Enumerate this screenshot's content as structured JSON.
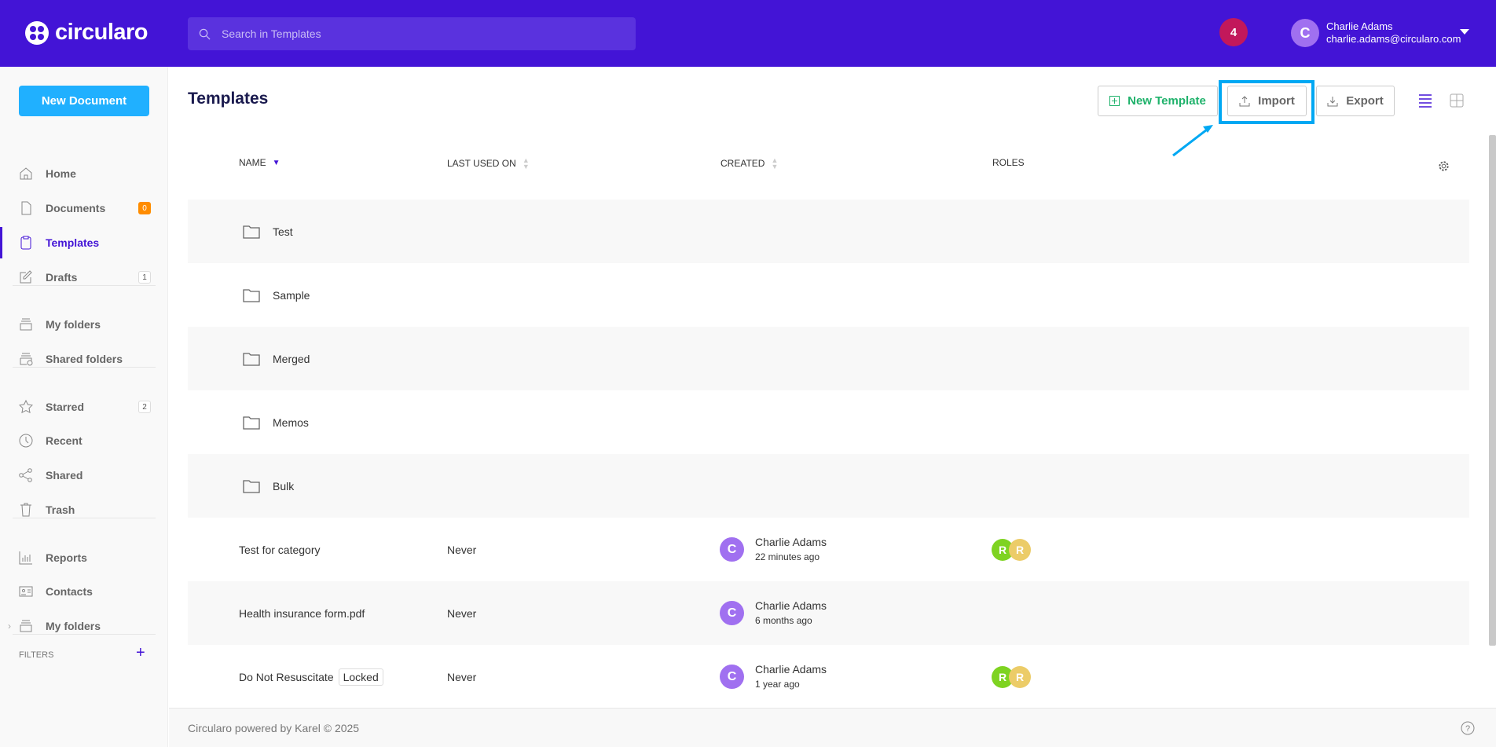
{
  "header": {
    "brand": "circularo",
    "search_placeholder": "Search in Templates",
    "notifications": "4",
    "user": {
      "initial": "C",
      "name": "Charlie Adams",
      "email": "charlie.adams@circularo.com"
    },
    "color": "#4314d6"
  },
  "sidebar": {
    "new_document": "New Document",
    "items": [
      {
        "label": "Home",
        "icon": "home-icon"
      },
      {
        "label": "Documents",
        "icon": "document-icon",
        "count": "0"
      },
      {
        "label": "Templates",
        "icon": "clipboard-icon",
        "active": true
      },
      {
        "label": "Drafts",
        "icon": "edit-icon",
        "count": "1"
      },
      {
        "label": "My folders",
        "icon": "folders-icon"
      },
      {
        "label": "Shared folders",
        "icon": "shared-folders-icon"
      },
      {
        "label": "Starred",
        "icon": "star-icon",
        "count": "2"
      },
      {
        "label": "Recent",
        "icon": "clock-icon"
      },
      {
        "label": "Shared",
        "icon": "share-icon"
      },
      {
        "label": "Trash",
        "icon": "trash-icon"
      },
      {
        "label": "Reports",
        "icon": "chart-icon"
      },
      {
        "label": "Contacts",
        "icon": "contact-card-icon"
      },
      {
        "label": "My folders",
        "icon": "folders-icon"
      }
    ],
    "filters_label": "FILTERS"
  },
  "main": {
    "title": "Templates",
    "new_template": "New Template",
    "import": "Import",
    "export": "Export",
    "columns": {
      "name": "NAME",
      "last_used": "LAST USED ON",
      "created": "CREATED",
      "roles": "ROLES"
    },
    "folders": [
      "Test",
      "Sample",
      "Merged",
      "Memos",
      "Bulk"
    ],
    "templates": [
      {
        "name": "Test for category",
        "last_used": "Never",
        "creator_initial": "C",
        "creator": "Charlie Adams",
        "created": "22 minutes ago",
        "roles": [
          "R",
          "R"
        ]
      },
      {
        "name": "Health insurance form.pdf",
        "last_used": "Never",
        "creator_initial": "C",
        "creator": "Charlie Adams",
        "created": "6 months ago",
        "roles": []
      },
      {
        "name": "Do Not Resuscitate",
        "badge": "Locked",
        "last_used": "Never",
        "creator_initial": "C",
        "creator": "Charlie Adams",
        "created": "1 year ago",
        "roles": [
          "R",
          "R"
        ]
      }
    ],
    "role_colors": [
      "#7ed321",
      "#eccc68"
    ]
  },
  "footer": {
    "text": "Circularo powered by Karel © 2025"
  }
}
